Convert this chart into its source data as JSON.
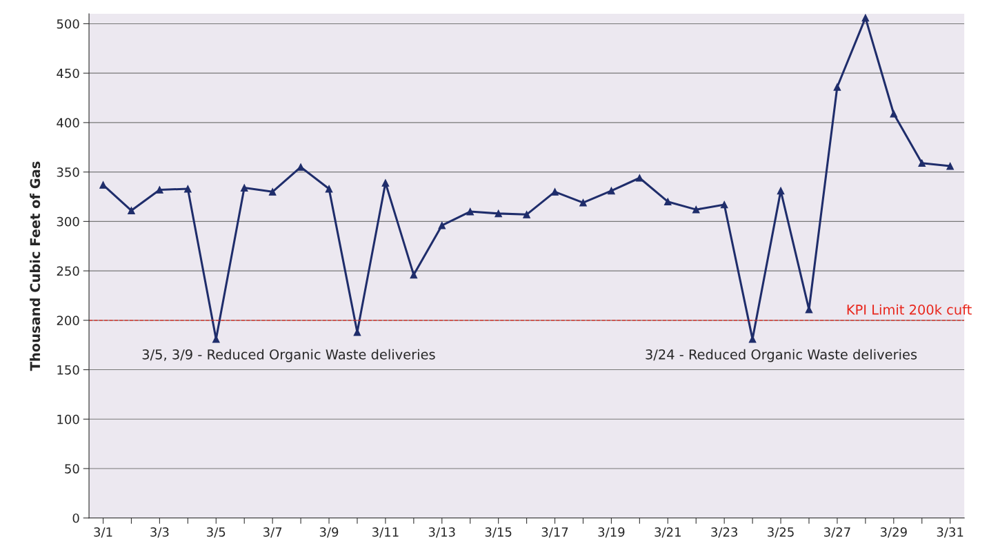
{
  "chart_data": {
    "type": "line",
    "ylabel": "Thousand Cubic Feet of Gas",
    "categories": [
      "3/1",
      null,
      "3/3",
      null,
      "3/5",
      null,
      "3/7",
      null,
      "3/9",
      null,
      "3/11",
      null,
      "3/13",
      null,
      "3/15",
      null,
      "3/17",
      null,
      "3/19",
      null,
      "3/21",
      null,
      "3/23",
      null,
      "3/25",
      null,
      "3/27",
      null,
      "3/29",
      null,
      "3/31"
    ],
    "series": [
      {
        "color": "#1f2d6b",
        "values": [
          337,
          311,
          332,
          333,
          181,
          334,
          330,
          355,
          333,
          188,
          339,
          246,
          296,
          310,
          308,
          307,
          330,
          319,
          331,
          344,
          320,
          312,
          317,
          181,
          331,
          211,
          436,
          506,
          409,
          359,
          356
        ]
      }
    ],
    "ylim": [
      0,
      510
    ],
    "yticks": [
      0,
      50,
      100,
      150,
      200,
      250,
      300,
      350,
      400,
      450,
      500
    ],
    "grid": "y",
    "marker": "triangle",
    "line_style": "solid",
    "ref_lines": [
      {
        "axis": "y",
        "value": 200,
        "label": "KPI Limit 200k cuft",
        "color": "#e8261c",
        "line_style": "dashed"
      }
    ],
    "annotations": [
      "3/5, 3/9 - Reduced Organic Waste deliveries",
      "3/24 - Reduced Organic Waste deliveries"
    ]
  }
}
